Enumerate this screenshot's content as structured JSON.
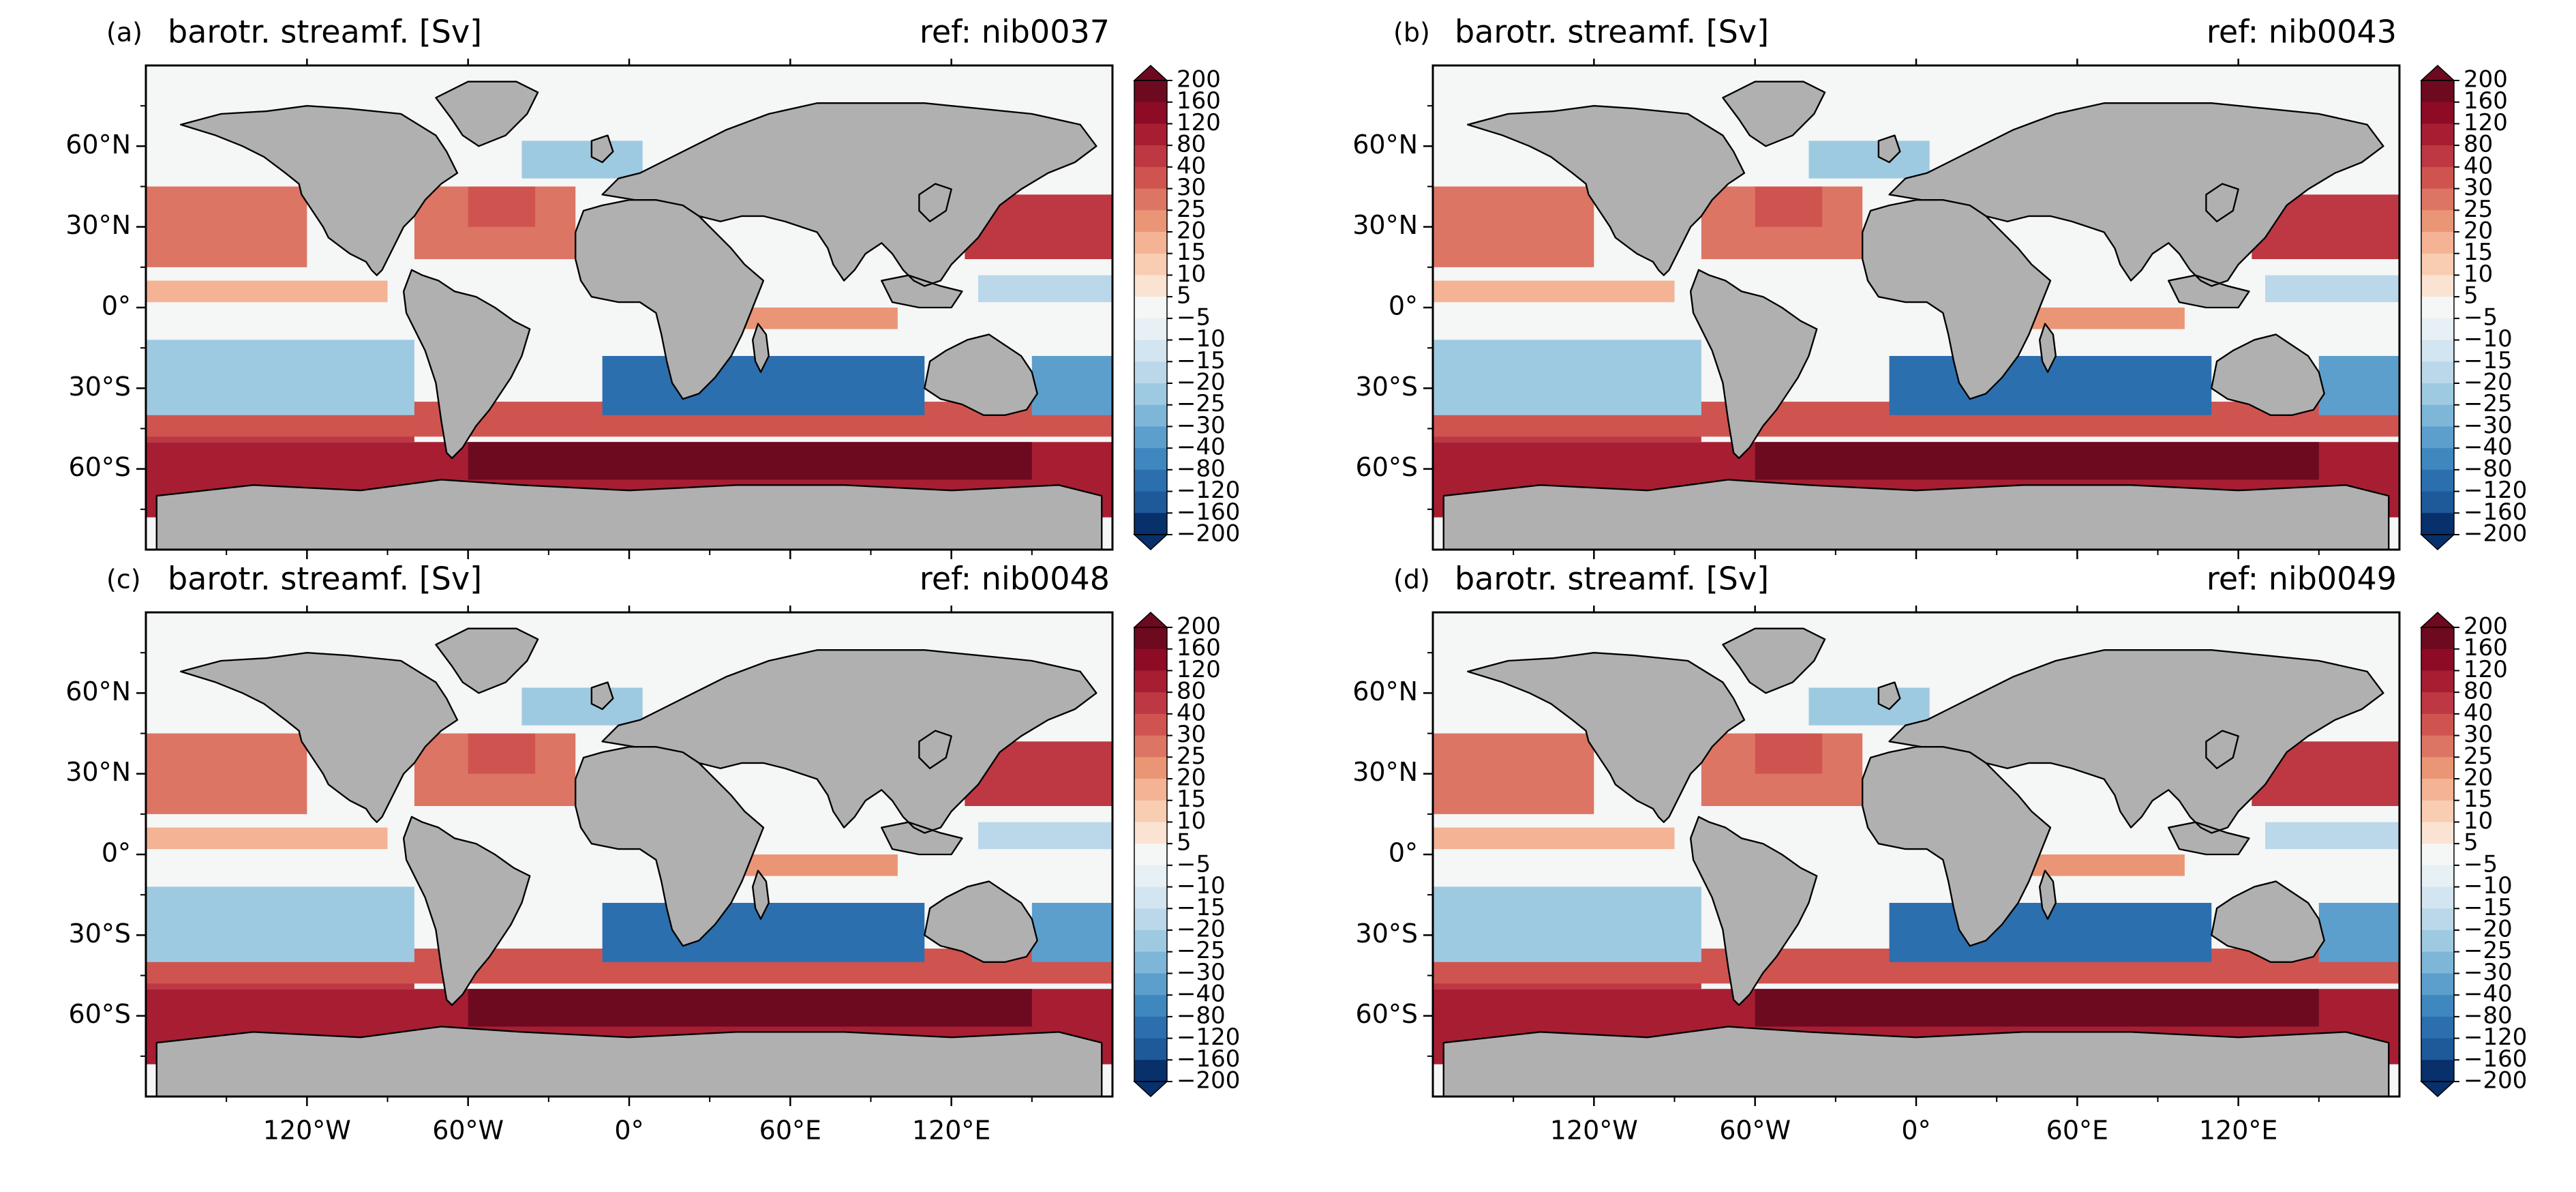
{
  "figure": {
    "panels": [
      {
        "letter": "(a)",
        "title": "barotr. streamf. [Sv]",
        "ref": "ref: nib0037"
      },
      {
        "letter": "(b)",
        "title": "barotr. streamf. [Sv]",
        "ref": "ref: nib0043"
      },
      {
        "letter": "(c)",
        "title": "barotr. streamf. [Sv]",
        "ref": "ref: nib0048"
      },
      {
        "letter": "(d)",
        "title": "barotr. streamf. [Sv]",
        "ref": "ref: nib0049"
      }
    ],
    "lat_ticks": [
      "60°N",
      "30°N",
      "0°",
      "30°S",
      "60°S"
    ],
    "lon_ticks": [
      "120°W",
      "60°W",
      "0°",
      "60°E",
      "120°E"
    ],
    "colorbar_ticks": [
      "200",
      "160",
      "120",
      "80",
      "40",
      "30",
      "25",
      "20",
      "15",
      "10",
      "5",
      "−5",
      "−10",
      "−15",
      "−20",
      "−25",
      "−30",
      "−40",
      "−80",
      "−120",
      "−160",
      "−200"
    ],
    "colors": {
      "land": "#b0b0b0",
      "coast": "#000000",
      "neutral": "#f5f6f6",
      "red_scale": [
        "#fbe3d3",
        "#f8cdb2",
        "#f4b394",
        "#ea9676",
        "#dc7564",
        "#cf5450",
        "#bd3842",
        "#a71e33",
        "#8d0b25",
        "#6d0a20"
      ],
      "blue_scale": [
        "#e7f0f5",
        "#d2e5f0",
        "#bad8e9",
        "#9ecae1",
        "#7eb6d8",
        "#5c9fcd",
        "#3f87bf",
        "#2c6fae",
        "#1e5a9a",
        "#08306b"
      ]
    }
  }
}
